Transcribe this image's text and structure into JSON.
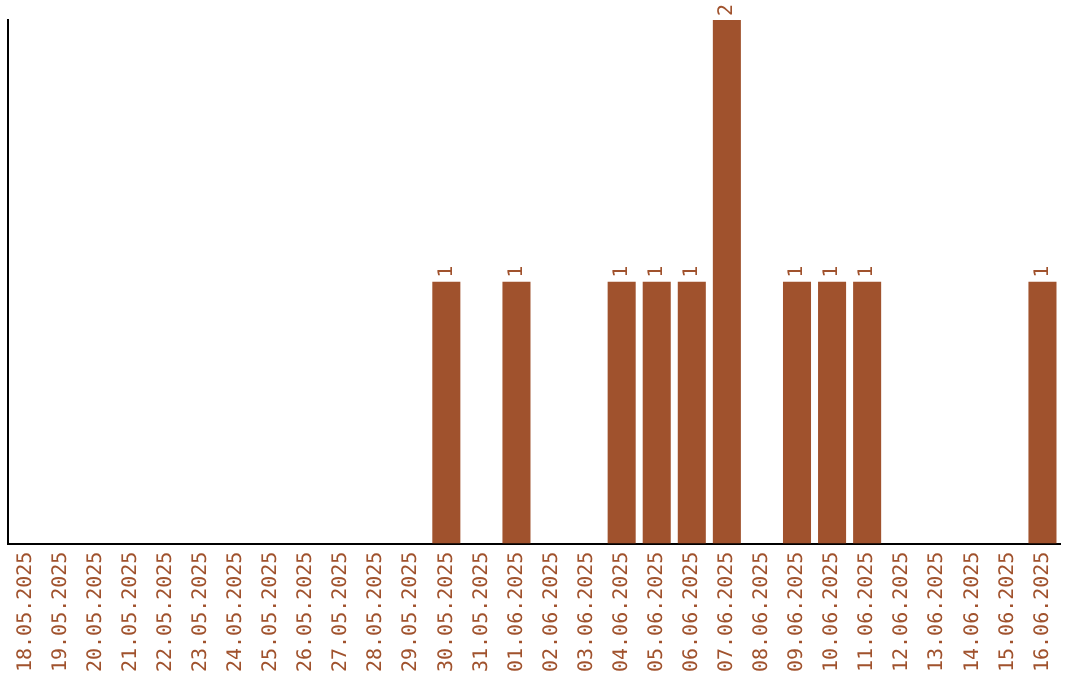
{
  "chart_data": {
    "type": "bar",
    "categories": [
      "18.05.2025",
      "19.05.2025",
      "20.05.2025",
      "21.05.2025",
      "22.05.2025",
      "23.05.2025",
      "24.05.2025",
      "25.05.2025",
      "26.05.2025",
      "27.05.2025",
      "28.05.2025",
      "29.05.2025",
      "30.05.2025",
      "31.05.2025",
      "01.06.2025",
      "02.06.2025",
      "03.06.2025",
      "04.06.2025",
      "05.06.2025",
      "06.06.2025",
      "07.06.2025",
      "08.06.2025",
      "09.06.2025",
      "10.06.2025",
      "11.06.2025",
      "12.06.2025",
      "13.06.2025",
      "14.06.2025",
      "15.06.2025",
      "16.06.2025"
    ],
    "values": [
      null,
      null,
      null,
      null,
      null,
      null,
      null,
      null,
      null,
      null,
      null,
      null,
      1,
      null,
      1,
      null,
      null,
      1,
      1,
      1,
      2,
      null,
      1,
      1,
      1,
      null,
      null,
      null,
      null,
      1
    ],
    "value_labels": [
      null,
      null,
      null,
      null,
      null,
      null,
      null,
      null,
      null,
      null,
      null,
      null,
      "1",
      null,
      "1",
      null,
      null,
      "1",
      "1",
      "1",
      "2",
      null,
      "1",
      "1",
      "1",
      null,
      null,
      null,
      null,
      "1"
    ],
    "color": "#a0522d",
    "tick_labels": "x",
    "grid": false,
    "legend": false
  }
}
